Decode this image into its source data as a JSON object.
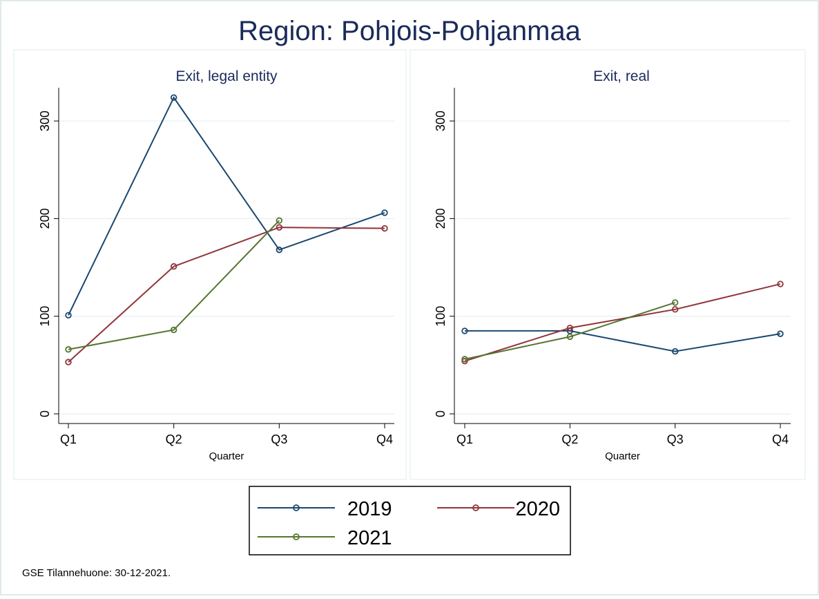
{
  "chart_data": [
    {
      "type": "line",
      "title": "Exit, legal entity",
      "xlabel": "Quarter",
      "ylabel": "",
      "categories": [
        "Q1",
        "Q2",
        "Q3",
        "Q4"
      ],
      "ylim": [
        0,
        335
      ],
      "yticks": [
        0,
        100,
        200,
        300
      ],
      "grid": true,
      "series": [
        {
          "name": "2019",
          "values": [
            101,
            324,
            168,
            206
          ]
        },
        {
          "name": "2020",
          "values": [
            53,
            151,
            191,
            190
          ]
        },
        {
          "name": "2021",
          "values": [
            66,
            86,
            198,
            null
          ]
        }
      ]
    },
    {
      "type": "line",
      "title": "Exit, real",
      "xlabel": "Quarter",
      "ylabel": "",
      "categories": [
        "Q1",
        "Q2",
        "Q3",
        "Q4"
      ],
      "ylim": [
        0,
        335
      ],
      "yticks": [
        0,
        100,
        200,
        300
      ],
      "grid": true,
      "series": [
        {
          "name": "2019",
          "values": [
            85,
            85,
            64,
            82
          ]
        },
        {
          "name": "2020",
          "values": [
            54,
            88,
            107,
            133
          ]
        },
        {
          "name": "2021",
          "values": [
            56,
            79,
            114,
            null
          ]
        }
      ]
    }
  ],
  "figure": {
    "title": "Region: Pohjois-Pohjanmaa",
    "note": "GSE Tilannehuone: 30-12-2021.",
    "legend_position": "bottom",
    "legend": [
      "2019",
      "2020",
      "2021"
    ],
    "colors": {
      "2019": "#1a476f",
      "2020": "#90353b",
      "2021": "#55752f"
    }
  }
}
